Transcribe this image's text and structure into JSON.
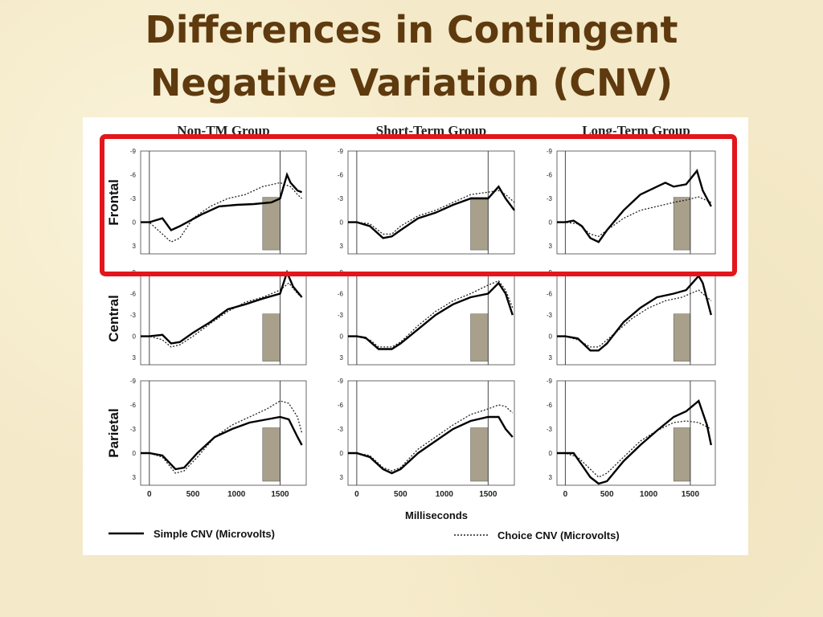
{
  "slide": {
    "title_line1": "Differences in Contingent",
    "title_line2": "Negative Variation (CNV)"
  },
  "chart_data": {
    "type": "line",
    "column_titles": [
      "Non-TM Group",
      "Short-Term Group",
      "Long-Term Group"
    ],
    "row_labels": [
      "Frontal",
      "Central",
      "Parietal"
    ],
    "xlabel": "Milliseconds",
    "x_ticks": [
      "0",
      "500",
      "1000",
      "1500"
    ],
    "y_ticks": [
      "-9",
      "-6",
      "-3",
      "0",
      "3"
    ],
    "xlim": [
      -100,
      1800
    ],
    "ylim": [
      4,
      -9
    ],
    "y_inverted": true,
    "shaded_interval": [
      1300,
      1500
    ],
    "legend": {
      "simple": "Simple CNV (Microvolts)",
      "choice": "Choice CNV (Microvolts)",
      "placement": "bottom"
    },
    "highlight": {
      "row": "Frontal",
      "color": "#e3161b"
    },
    "panels": [
      {
        "group": "Non-TM Group",
        "site": "Frontal",
        "simple": [
          [
            -100,
            0
          ],
          [
            0,
            0
          ],
          [
            150,
            -0.5
          ],
          [
            250,
            1
          ],
          [
            350,
            0.5
          ],
          [
            600,
            -1
          ],
          [
            800,
            -2
          ],
          [
            1000,
            -2.2
          ],
          [
            1200,
            -2.3
          ],
          [
            1400,
            -2.5
          ],
          [
            1500,
            -3
          ],
          [
            1580,
            -6
          ],
          [
            1620,
            -5
          ],
          [
            1700,
            -4
          ],
          [
            1750,
            -3.8
          ]
        ],
        "choice": [
          [
            -100,
            0
          ],
          [
            0,
            0
          ],
          [
            150,
            1.5
          ],
          [
            250,
            2.5
          ],
          [
            350,
            2
          ],
          [
            500,
            -0.5
          ],
          [
            700,
            -2
          ],
          [
            900,
            -3
          ],
          [
            1100,
            -3.5
          ],
          [
            1300,
            -4.5
          ],
          [
            1500,
            -5
          ],
          [
            1620,
            -4.5
          ],
          [
            1700,
            -3.5
          ],
          [
            1750,
            -3
          ]
        ]
      },
      {
        "group": "Short-Term Group",
        "site": "Frontal",
        "simple": [
          [
            -100,
            0
          ],
          [
            0,
            0
          ],
          [
            150,
            0.5
          ],
          [
            300,
            2
          ],
          [
            400,
            1.8
          ],
          [
            500,
            1
          ],
          [
            700,
            -0.5
          ],
          [
            900,
            -1.2
          ],
          [
            1100,
            -2.2
          ],
          [
            1300,
            -3
          ],
          [
            1500,
            -3
          ],
          [
            1620,
            -4.5
          ],
          [
            1700,
            -3
          ],
          [
            1800,
            -1.5
          ]
        ],
        "choice": [
          [
            -100,
            0
          ],
          [
            0,
            0
          ],
          [
            150,
            0.2
          ],
          [
            300,
            1.5
          ],
          [
            400,
            1.5
          ],
          [
            500,
            0.5
          ],
          [
            700,
            -0.8
          ],
          [
            900,
            -1.5
          ],
          [
            1100,
            -2.5
          ],
          [
            1300,
            -3.5
          ],
          [
            1500,
            -3.8
          ],
          [
            1620,
            -4
          ],
          [
            1700,
            -3.5
          ],
          [
            1800,
            -2.5
          ]
        ]
      },
      {
        "group": "Long-Term Group",
        "site": "Frontal",
        "simple": [
          [
            -100,
            0
          ],
          [
            0,
            0
          ],
          [
            100,
            -0.2
          ],
          [
            200,
            0.5
          ],
          [
            300,
            2
          ],
          [
            400,
            2.5
          ],
          [
            500,
            1
          ],
          [
            700,
            -1.5
          ],
          [
            900,
            -3.5
          ],
          [
            1100,
            -4.5
          ],
          [
            1200,
            -5
          ],
          [
            1300,
            -4.5
          ],
          [
            1450,
            -4.8
          ],
          [
            1580,
            -6.5
          ],
          [
            1650,
            -4
          ],
          [
            1750,
            -2
          ]
        ],
        "choice": [
          [
            -100,
            0
          ],
          [
            0,
            0
          ],
          [
            150,
            0.2
          ],
          [
            300,
            1.5
          ],
          [
            400,
            1.8
          ],
          [
            500,
            1
          ],
          [
            700,
            -0.5
          ],
          [
            900,
            -1.5
          ],
          [
            1100,
            -2
          ],
          [
            1300,
            -2.5
          ],
          [
            1450,
            -2.8
          ],
          [
            1600,
            -3.2
          ],
          [
            1750,
            -2.5
          ]
        ]
      },
      {
        "group": "Non-TM Group",
        "site": "Central",
        "simple": [
          [
            -100,
            0
          ],
          [
            0,
            0
          ],
          [
            150,
            -0.2
          ],
          [
            250,
            1
          ],
          [
            350,
            0.8
          ],
          [
            500,
            -0.5
          ],
          [
            700,
            -2
          ],
          [
            900,
            -3.8
          ],
          [
            1100,
            -4.5
          ],
          [
            1300,
            -5.3
          ],
          [
            1500,
            -6
          ],
          [
            1580,
            -9
          ],
          [
            1650,
            -7
          ],
          [
            1750,
            -5.5
          ]
        ],
        "choice": [
          [
            -100,
            0
          ],
          [
            0,
            0
          ],
          [
            150,
            0.5
          ],
          [
            250,
            1.5
          ],
          [
            350,
            1.2
          ],
          [
            500,
            0
          ],
          [
            700,
            -1.8
          ],
          [
            900,
            -3.5
          ],
          [
            1100,
            -4.8
          ],
          [
            1300,
            -5.5
          ],
          [
            1500,
            -6.5
          ],
          [
            1600,
            -7.5
          ],
          [
            1700,
            -6
          ],
          [
            1750,
            -5.5
          ]
        ]
      },
      {
        "group": "Short-Term Group",
        "site": "Central",
        "simple": [
          [
            -100,
            0
          ],
          [
            0,
            0
          ],
          [
            100,
            0.2
          ],
          [
            250,
            1.8
          ],
          [
            400,
            1.8
          ],
          [
            500,
            1
          ],
          [
            700,
            -1
          ],
          [
            900,
            -3
          ],
          [
            1100,
            -4.5
          ],
          [
            1300,
            -5.5
          ],
          [
            1500,
            -6
          ],
          [
            1620,
            -7.5
          ],
          [
            1700,
            -6
          ],
          [
            1780,
            -3
          ]
        ],
        "choice": [
          [
            -100,
            0
          ],
          [
            0,
            0
          ],
          [
            150,
            0.5
          ],
          [
            250,
            1.5
          ],
          [
            400,
            1.5
          ],
          [
            500,
            0.8
          ],
          [
            700,
            -1.5
          ],
          [
            900,
            -3.5
          ],
          [
            1100,
            -5
          ],
          [
            1300,
            -6
          ],
          [
            1500,
            -7.2
          ],
          [
            1620,
            -7.8
          ],
          [
            1700,
            -6.5
          ],
          [
            1780,
            -4
          ]
        ]
      },
      {
        "group": "Long-Term Group",
        "site": "Central",
        "simple": [
          [
            -100,
            0
          ],
          [
            0,
            0
          ],
          [
            150,
            0.3
          ],
          [
            300,
            2
          ],
          [
            400,
            2
          ],
          [
            500,
            1
          ],
          [
            700,
            -2
          ],
          [
            900,
            -4
          ],
          [
            1100,
            -5.5
          ],
          [
            1300,
            -6
          ],
          [
            1450,
            -6.5
          ],
          [
            1600,
            -8.5
          ],
          [
            1650,
            -7.5
          ],
          [
            1750,
            -3
          ]
        ],
        "choice": [
          [
            -100,
            0
          ],
          [
            0,
            0
          ],
          [
            150,
            0.5
          ],
          [
            300,
            1.5
          ],
          [
            400,
            1.5
          ],
          [
            600,
            -0.5
          ],
          [
            800,
            -2.5
          ],
          [
            1000,
            -4
          ],
          [
            1200,
            -5
          ],
          [
            1400,
            -5.5
          ],
          [
            1600,
            -6.5
          ],
          [
            1750,
            -5
          ]
        ]
      },
      {
        "group": "Non-TM Group",
        "site": "Parietal",
        "simple": [
          [
            -100,
            0
          ],
          [
            0,
            0
          ],
          [
            150,
            0.3
          ],
          [
            300,
            2
          ],
          [
            400,
            1.8
          ],
          [
            550,
            0
          ],
          [
            750,
            -2
          ],
          [
            950,
            -3
          ],
          [
            1150,
            -3.8
          ],
          [
            1350,
            -4.2
          ],
          [
            1500,
            -4.5
          ],
          [
            1600,
            -4.2
          ],
          [
            1700,
            -2
          ],
          [
            1750,
            -1
          ]
        ],
        "choice": [
          [
            -100,
            0
          ],
          [
            0,
            0
          ],
          [
            150,
            0.5
          ],
          [
            300,
            2.5
          ],
          [
            400,
            2.2
          ],
          [
            550,
            0.5
          ],
          [
            750,
            -2
          ],
          [
            950,
            -3.5
          ],
          [
            1150,
            -4.5
          ],
          [
            1350,
            -5.5
          ],
          [
            1500,
            -6.5
          ],
          [
            1600,
            -6.2
          ],
          [
            1700,
            -4.5
          ],
          [
            1750,
            -2.5
          ]
        ]
      },
      {
        "group": "Short-Term Group",
        "site": "Parietal",
        "simple": [
          [
            -100,
            0
          ],
          [
            0,
            0
          ],
          [
            150,
            0.5
          ],
          [
            300,
            2
          ],
          [
            400,
            2.5
          ],
          [
            500,
            2
          ],
          [
            700,
            0
          ],
          [
            900,
            -1.5
          ],
          [
            1100,
            -3
          ],
          [
            1300,
            -4
          ],
          [
            1500,
            -4.5
          ],
          [
            1620,
            -4.5
          ],
          [
            1700,
            -3
          ],
          [
            1780,
            -2
          ]
        ],
        "choice": [
          [
            -100,
            0
          ],
          [
            0,
            0
          ],
          [
            150,
            0.3
          ],
          [
            300,
            1.8
          ],
          [
            400,
            2.2
          ],
          [
            500,
            1.8
          ],
          [
            700,
            -0.5
          ],
          [
            900,
            -2
          ],
          [
            1100,
            -3.5
          ],
          [
            1300,
            -4.8
          ],
          [
            1500,
            -5.5
          ],
          [
            1620,
            -6
          ],
          [
            1700,
            -5.8
          ],
          [
            1780,
            -5
          ]
        ]
      },
      {
        "group": "Long-Term Group",
        "site": "Parietal",
        "simple": [
          [
            -100,
            0
          ],
          [
            0,
            0
          ],
          [
            100,
            0
          ],
          [
            200,
            1.5
          ],
          [
            300,
            3
          ],
          [
            400,
            3.8
          ],
          [
            500,
            3.5
          ],
          [
            700,
            1
          ],
          [
            900,
            -1
          ],
          [
            1100,
            -2.8
          ],
          [
            1300,
            -4.5
          ],
          [
            1450,
            -5.2
          ],
          [
            1600,
            -6.5
          ],
          [
            1700,
            -3.5
          ],
          [
            1750,
            -1
          ]
        ],
        "choice": [
          [
            -100,
            0
          ],
          [
            0,
            0
          ],
          [
            150,
            0.5
          ],
          [
            300,
            2
          ],
          [
            400,
            3
          ],
          [
            500,
            2.5
          ],
          [
            700,
            0.5
          ],
          [
            900,
            -1.5
          ],
          [
            1100,
            -2.8
          ],
          [
            1300,
            -3.8
          ],
          [
            1450,
            -4
          ],
          [
            1600,
            -3.8
          ],
          [
            1750,
            -3
          ]
        ]
      }
    ]
  }
}
